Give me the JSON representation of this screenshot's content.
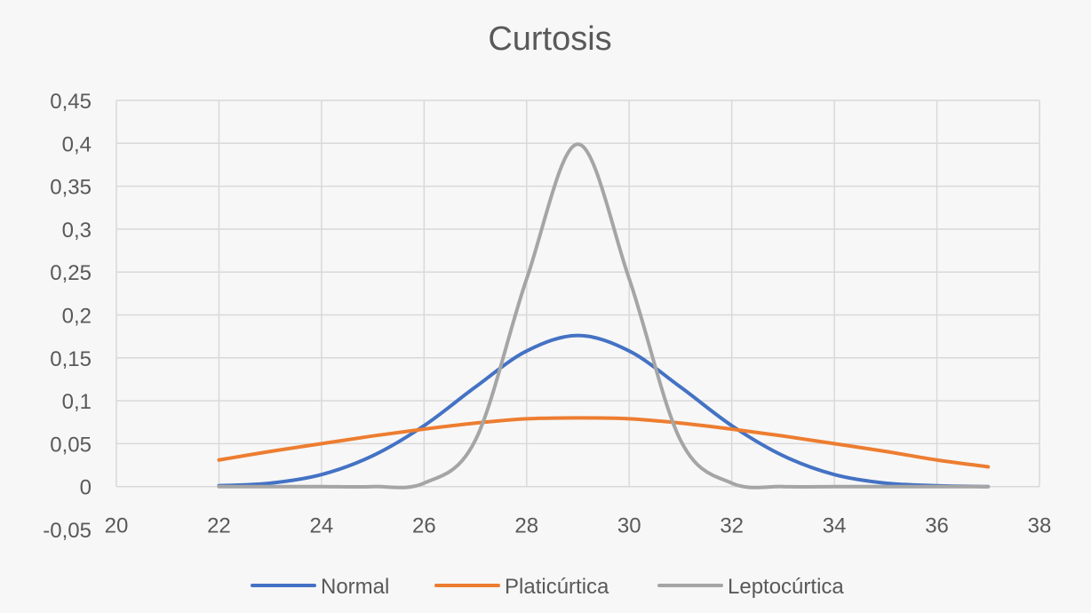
{
  "chart_data": {
    "type": "scatter",
    "subtype": "smooth-lines",
    "title": "Curtosis",
    "xlabel": "",
    "ylabel": "",
    "xlim": [
      20,
      38
    ],
    "ylim": [
      -0.05,
      0.45
    ],
    "x_ticks": [
      20,
      22,
      24,
      26,
      28,
      30,
      32,
      34,
      36,
      38
    ],
    "x_tick_labels": [
      "20",
      "22",
      "24",
      "26",
      "28",
      "30",
      "32",
      "34",
      "36",
      "38"
    ],
    "y_ticks": [
      -0.05,
      0,
      0.05,
      0.1,
      0.15,
      0.2,
      0.25,
      0.3,
      0.35,
      0.4,
      0.45
    ],
    "y_tick_labels": [
      "-0,05",
      "0",
      "0,05",
      "0,1",
      "0,15",
      "0,2",
      "0,25",
      "0,3",
      "0,35",
      "0,4",
      "0,45"
    ],
    "grid": true,
    "legend_position": "bottom",
    "series": [
      {
        "name": "Normal",
        "color": "#4472c4",
        "x": [
          22,
          23,
          24,
          25,
          26,
          27,
          28,
          29,
          30,
          31,
          32,
          33,
          34,
          35,
          36,
          37
        ],
        "y": [
          0.001,
          0.004,
          0.014,
          0.036,
          0.071,
          0.116,
          0.158,
          0.176,
          0.158,
          0.116,
          0.071,
          0.036,
          0.014,
          0.004,
          0.001,
          0.0
        ]
      },
      {
        "name": "Platicúrtica",
        "color": "#ed7d31",
        "x": [
          22,
          23,
          24,
          25,
          26,
          27,
          28,
          29,
          30,
          31,
          32,
          33,
          34,
          35,
          36,
          37
        ],
        "y": [
          0.031,
          0.041,
          0.05,
          0.059,
          0.067,
          0.074,
          0.079,
          0.08,
          0.079,
          0.074,
          0.067,
          0.059,
          0.05,
          0.041,
          0.031,
          0.023
        ]
      },
      {
        "name": "Leptocúrtica",
        "color": "#a5a5a5",
        "x": [
          22,
          23,
          24,
          25,
          26,
          27,
          28,
          29,
          30,
          31,
          32,
          33,
          34,
          35,
          36,
          37
        ],
        "y": [
          0.0,
          0.0,
          0.0,
          0.0,
          0.004,
          0.054,
          0.242,
          0.399,
          0.242,
          0.054,
          0.004,
          0.0,
          0.0,
          0.0,
          0.0,
          0.0
        ]
      }
    ]
  }
}
